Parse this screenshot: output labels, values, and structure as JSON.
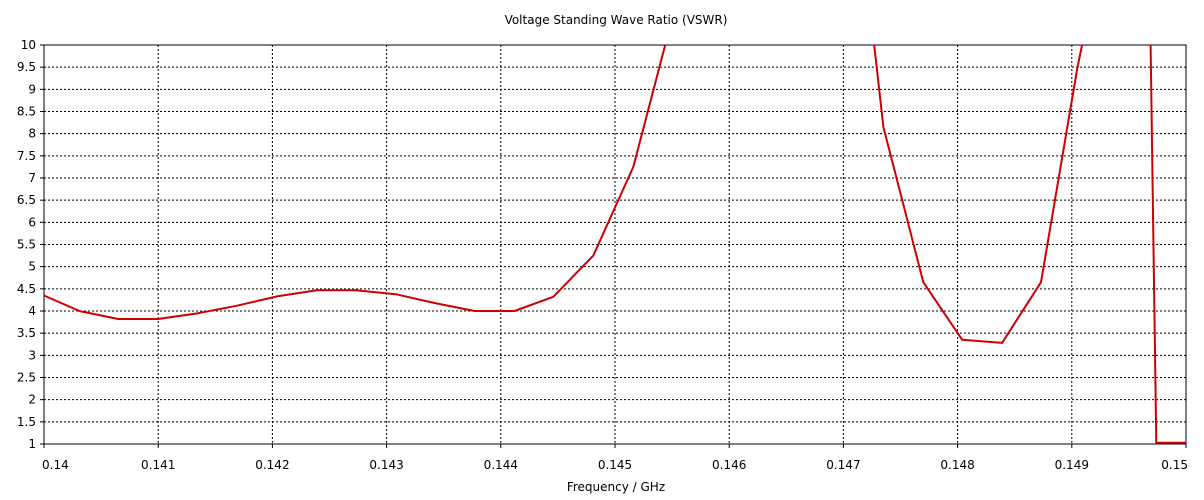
{
  "chart_data": {
    "type": "line",
    "title": "Voltage Standing Wave Ratio (VSWR)",
    "xlabel": "Frequency / GHz",
    "ylabel": "",
    "xlim": [
      0.14,
      0.15
    ],
    "ylim": [
      1,
      10
    ],
    "grid": true,
    "line_color": "#cc0000",
    "x_ticks": [
      "0.14",
      "0.141",
      "0.142",
      "0.143",
      "0.144",
      "0.145",
      "0.146",
      "0.147",
      "0.148",
      "0.149",
      "0.15"
    ],
    "y_ticks": [
      "1",
      "1.5",
      "2",
      "2.5",
      "3",
      "3.5",
      "4",
      "4.5",
      "5",
      "5.5",
      "6",
      "6.5",
      "7",
      "7.5",
      "8",
      "8.5",
      "9",
      "9.5",
      "10"
    ],
    "segments": [
      {
        "x": [
          0.14,
          0.14031,
          0.14065,
          0.141,
          0.14135,
          0.14169,
          0.14204,
          0.14239,
          0.14273,
          0.14308,
          0.14342,
          0.14377,
          0.14412,
          0.14446,
          0.14481,
          0.14516,
          0.14544
        ],
        "y": [
          4.35,
          4.0,
          3.82,
          3.82,
          3.95,
          4.12,
          4.33,
          4.47,
          4.47,
          4.38,
          4.18,
          4.0,
          4.0,
          4.32,
          5.25,
          7.25,
          10
        ]
      },
      {
        "x": [
          0.14727,
          0.14735,
          0.1477,
          0.14804,
          0.14839,
          0.14873,
          0.14905
        ],
        "y": [
          10,
          8.15,
          4.65,
          3.35,
          3.28,
          4.65,
          9.5
        ]
      },
      {
        "x": [
          0.14905,
          0.14909
        ],
        "y": [
          9.5,
          10
        ]
      },
      {
        "x": [
          0.14969,
          0.14974,
          0.15
        ],
        "y": [
          10,
          1.03,
          1.03
        ]
      }
    ]
  }
}
